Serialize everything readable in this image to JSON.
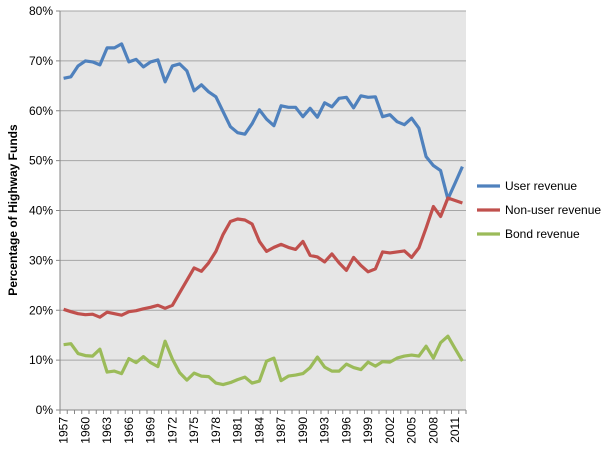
{
  "chart_data": {
    "type": "line",
    "title": "",
    "xlabel": "",
    "ylabel": "Percentage of Highway Funds",
    "ylim": [
      0,
      80
    ],
    "yticks": [
      "0%",
      "10%",
      "20%",
      "30%",
      "40%",
      "50%",
      "60%",
      "70%",
      "80%"
    ],
    "xtick_labels": [
      "1957",
      "1960",
      "1963",
      "1966",
      "1969",
      "1972",
      "1975",
      "1978",
      "1981",
      "1984",
      "1987",
      "1990",
      "1993",
      "1996",
      "1999",
      "2002",
      "2005",
      "2008",
      "2011"
    ],
    "x_start": 1957,
    "x_end": 2012,
    "grid": true,
    "legend_position": "right",
    "series": [
      {
        "name": "User revenue",
        "color": "#4f81bd",
        "values": [
          66.5,
          66.8,
          69,
          70,
          69.8,
          69.2,
          72.6,
          72.6,
          73.4,
          69.8,
          70.3,
          68.8,
          69.8,
          70.2,
          65.8,
          69,
          69.4,
          68,
          64,
          65.2,
          63.8,
          62.8,
          59.8,
          56.8,
          55.6,
          55.3,
          57.4,
          60.2,
          58.3,
          57,
          61,
          60.7,
          60.7,
          58.8,
          60.5,
          58.7,
          61.6,
          60.8,
          62.5,
          62.7,
          60.6,
          63,
          62.7,
          62.8,
          58.8,
          59.2,
          57.8,
          57.2,
          58.5,
          56.5,
          50.8,
          49,
          48,
          42.3,
          45.5,
          48.8
        ]
      },
      {
        "name": "Non-user revenue",
        "color": "#c0504d",
        "values": [
          20.2,
          19.7,
          19.3,
          19.1,
          19.2,
          18.6,
          19.6,
          19.3,
          19.0,
          19.7,
          19.9,
          20.3,
          20.6,
          21,
          20.4,
          21,
          23.5,
          26,
          28.5,
          27.8,
          29.5,
          31.8,
          35.2,
          37.8,
          38.3,
          38.1,
          37.3,
          33.8,
          31.8,
          32.6,
          33.2,
          32.6,
          32.2,
          33.8,
          31,
          30.7,
          29.7,
          31.3,
          29.5,
          28,
          30.6,
          29,
          27.7,
          28.3,
          31.7,
          31.5,
          31.7,
          31.9,
          30.6,
          32.5,
          36.5,
          40.8,
          38.8,
          42.5,
          42,
          41.5
        ]
      },
      {
        "name": "Bond revenue",
        "color": "#9bbb59",
        "values": [
          13.1,
          13.3,
          11.3,
          10.9,
          10.8,
          12.2,
          7.6,
          7.8,
          7.3,
          10.3,
          9.5,
          10.7,
          9.5,
          8.7,
          13.8,
          10.2,
          7.5,
          6,
          7.4,
          6.8,
          6.7,
          5.4,
          5.1,
          5.5,
          6.1,
          6.6,
          5.4,
          5.8,
          9.8,
          10.4,
          5.9,
          6.8,
          7,
          7.3,
          8.5,
          10.6,
          8.6,
          7.8,
          7.8,
          9.2,
          8.5,
          8.1,
          9.6,
          8.8,
          9.7,
          9.6,
          10.4,
          10.8,
          11,
          10.8,
          12.8,
          10.4,
          13.5,
          14.8,
          12.3,
          9.8
        ]
      }
    ]
  }
}
